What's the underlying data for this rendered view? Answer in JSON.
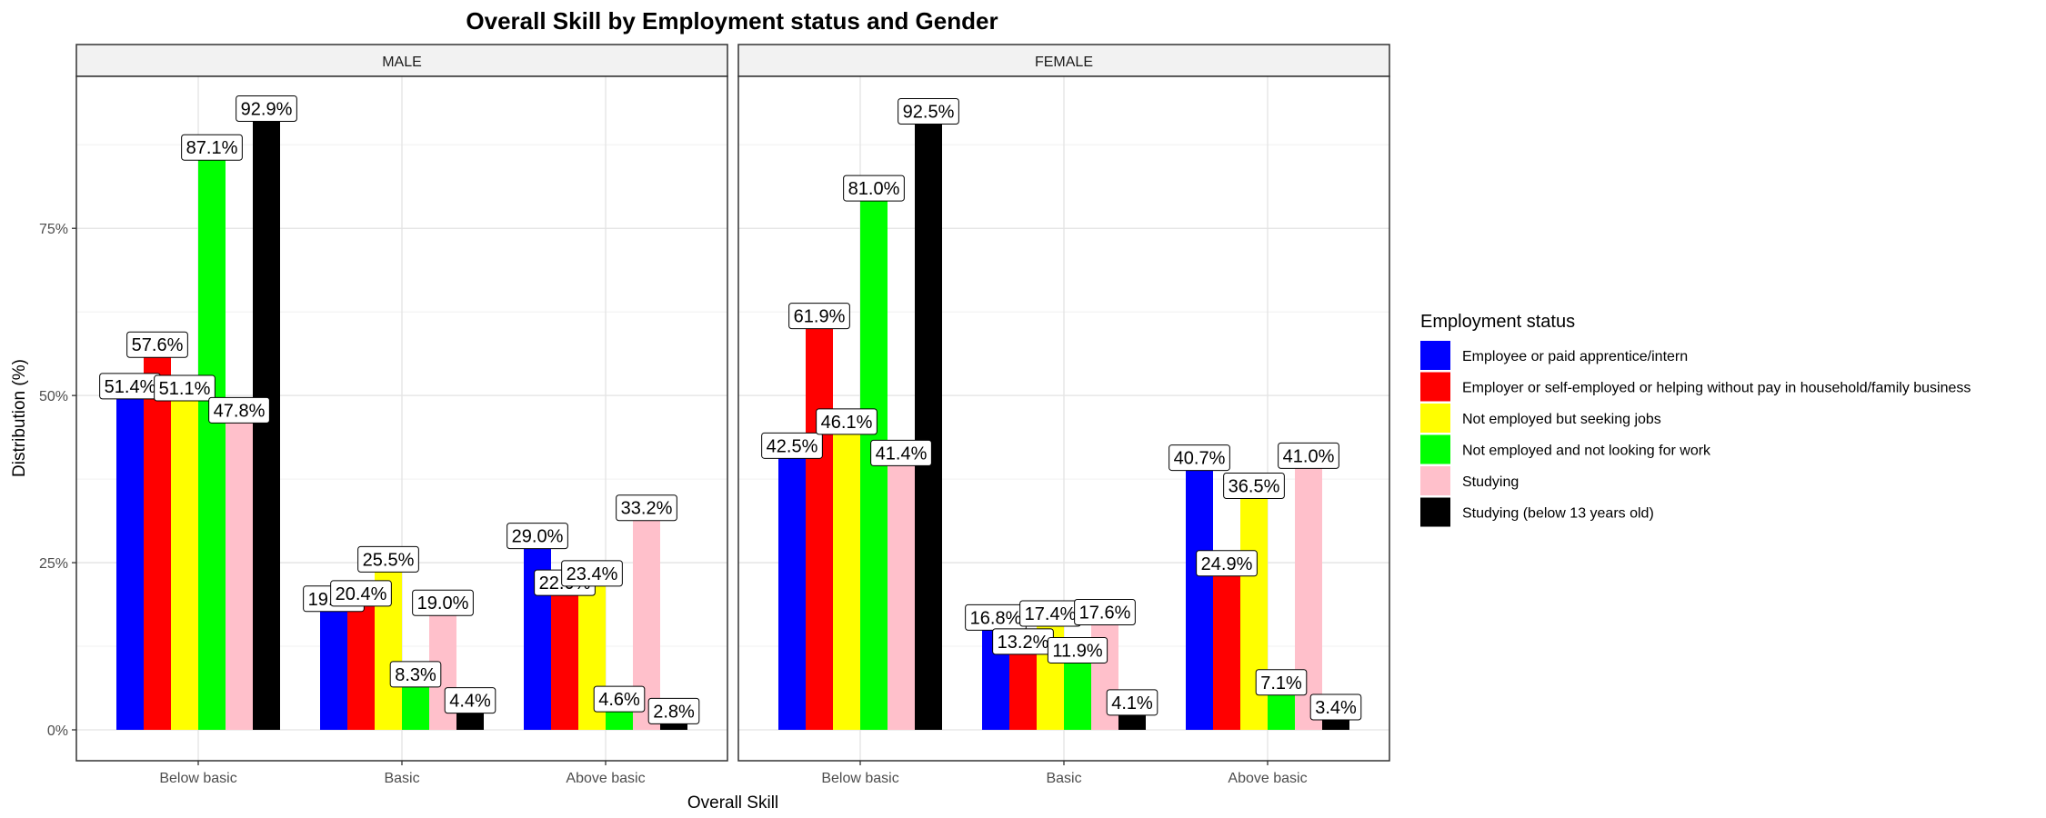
{
  "chart_data": {
    "type": "bar",
    "title": "Overall Skill by Employment status and Gender",
    "xlabel": "Overall Skill",
    "ylabel": "Distribution (%)",
    "ylim": [
      0,
      100
    ],
    "y_ticks": [
      0,
      25,
      50,
      75
    ],
    "y_tick_labels": [
      "0%",
      "25%",
      "50%",
      "75%"
    ],
    "categories": [
      "Below basic",
      "Basic",
      "Above basic"
    ],
    "grid": true,
    "legend": {
      "title": "Employment status",
      "position": "right"
    },
    "series": [
      {
        "name": "Employee or paid apprentice/intern",
        "color": "#0000FF"
      },
      {
        "name": "Employer or self-employed or helping without pay in household/family business",
        "color": "#FF0000"
      },
      {
        "name": "Not employed but seeking jobs",
        "color": "#FFFF00"
      },
      {
        "name": "Not employed and not looking for work",
        "color": "#00FF00"
      },
      {
        "name": "Studying",
        "color": "#FFC0CB"
      },
      {
        "name": "Studying (below 13 years old)",
        "color": "#000000"
      }
    ],
    "panels": [
      {
        "name": "MALE",
        "values": [
          [
            51.4,
            57.6,
            51.1,
            87.1,
            47.8,
            92.9
          ],
          [
            19.6,
            20.4,
            25.5,
            8.3,
            19.0,
            4.4
          ],
          [
            29.0,
            22.0,
            23.4,
            4.6,
            33.2,
            2.8
          ]
        ],
        "labels": [
          [
            "51.4%",
            "57.6%",
            "51.1%",
            "87.1%",
            "47.8%",
            "92.9%"
          ],
          [
            "19.6%",
            "20.4%",
            "25.5%",
            "8.3%",
            "19.0%",
            "4.4%"
          ],
          [
            "29.0%",
            "22.0%",
            "23.4%",
            "4.6%",
            "33.2%",
            "2.8%"
          ]
        ]
      },
      {
        "name": "FEMALE",
        "values": [
          [
            42.5,
            61.9,
            46.1,
            81.0,
            41.4,
            92.5
          ],
          [
            16.8,
            13.2,
            17.4,
            11.9,
            17.6,
            4.1
          ],
          [
            40.7,
            24.9,
            36.5,
            7.1,
            41.0,
            3.4
          ]
        ],
        "labels": [
          [
            "42.5%",
            "61.9%",
            "46.1%",
            "81.0%",
            "41.4%",
            "92.5%"
          ],
          [
            "16.8%",
            "13.2%",
            "17.4%",
            "11.9%",
            "17.6%",
            "4.1%"
          ],
          [
            "40.7%",
            "24.9%",
            "36.5%",
            "7.1%",
            "41.0%",
            "3.4%"
          ]
        ]
      }
    ]
  }
}
